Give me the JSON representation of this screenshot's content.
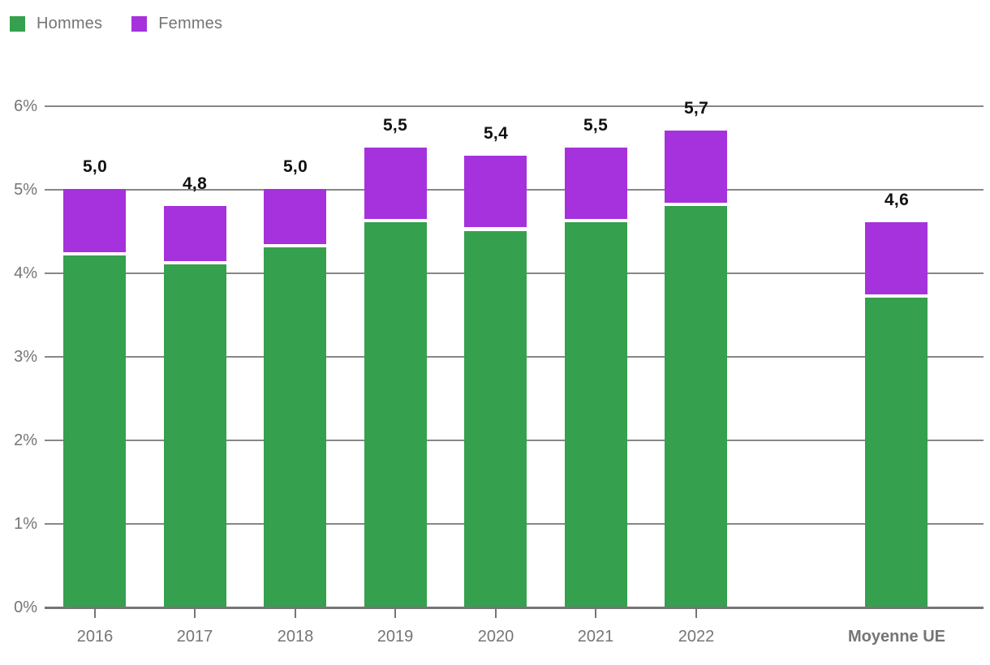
{
  "legend": {
    "items": [
      {
        "label": "Hommes",
        "color": "#35a04e"
      },
      {
        "label": "Femmes",
        "color": "#a532dc"
      }
    ]
  },
  "chart_data": {
    "type": "bar",
    "stacked": true,
    "title": "",
    "categories": [
      "2016",
      "2017",
      "2018",
      "2019",
      "2020",
      "2021",
      "2022",
      "Moyenne UE"
    ],
    "series": [
      {
        "name": "Hommes",
        "color": "#35a04e",
        "values": [
          4.2,
          4.1,
          4.3,
          4.6,
          4.5,
          4.6,
          4.8,
          3.7
        ]
      },
      {
        "name": "Femmes",
        "color": "#a532dc",
        "values": [
          0.8,
          0.7,
          0.7,
          0.9,
          0.9,
          0.9,
          0.9,
          0.9
        ]
      }
    ],
    "totals": [
      5.0,
      4.8,
      5.0,
      5.5,
      5.4,
      5.5,
      5.7,
      4.6
    ],
    "total_labels": [
      "5,0",
      "4,8",
      "5,0",
      "5,5",
      "5,4",
      "5,5",
      "5,7",
      "4,6"
    ],
    "y_ticks": [
      "0%",
      "1%",
      "2%",
      "3%",
      "4%",
      "5%",
      "6%"
    ],
    "ylim": [
      0,
      6
    ],
    "unit": "%",
    "xlabel": "",
    "ylabel": "",
    "grid": true,
    "legend_position": "top-left",
    "layout_hints": {
      "gap_before_last_category": true,
      "bold_categories": [
        "Moyenne UE"
      ],
      "x_ticks_for_categories": [
        "2016",
        "2017",
        "2018",
        "2019",
        "2020",
        "2021",
        "2022"
      ],
      "value_label_decimal_separator": ",",
      "white_separator_between_segments": true
    },
    "colors": {
      "axis_text": "#757575",
      "gridline": "#878787",
      "baseline": "#757575",
      "value_label": "#111111",
      "background": "#ffffff"
    }
  }
}
